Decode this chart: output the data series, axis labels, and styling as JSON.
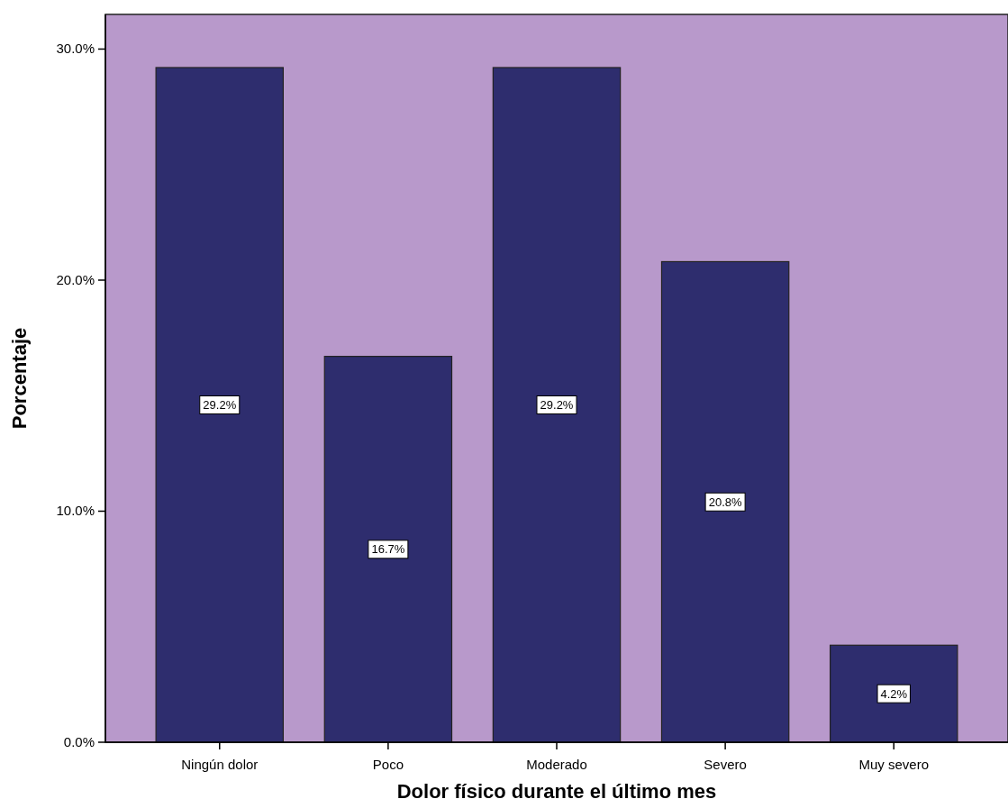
{
  "chart_data": {
    "type": "bar",
    "xlabel": "Dolor físico durante el último mes",
    "ylabel": "Porcentaje",
    "categories": [
      "Ningún dolor",
      "Poco",
      "Moderado",
      "Severo",
      "Muy severo"
    ],
    "values": [
      29.2,
      16.7,
      29.2,
      20.8,
      4.2
    ],
    "color": "#2e2d6e",
    "value_labels": [
      "29.2%",
      "16.7%",
      "29.2%",
      "20.8%",
      "4.2%"
    ],
    "ylim": [
      0,
      31.5
    ],
    "yticks": [
      {
        "value": 0,
        "label": "0.0%"
      },
      {
        "value": 10,
        "label": "10.0%"
      },
      {
        "value": 20,
        "label": "20.0%"
      },
      {
        "value": 30,
        "label": "30.0%"
      }
    ],
    "grid": false
  }
}
